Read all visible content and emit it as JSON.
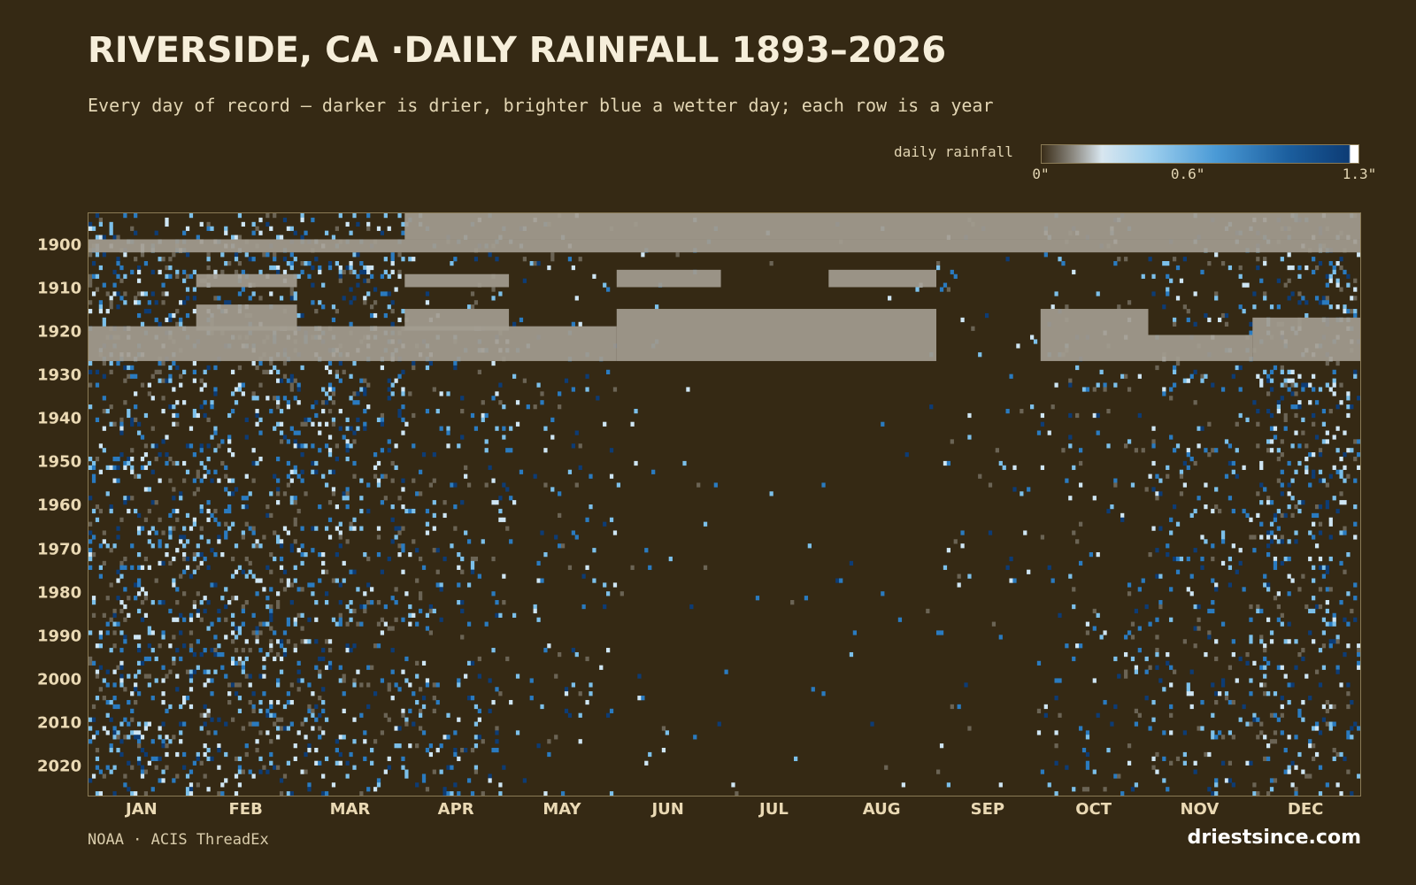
{
  "page": {
    "title": "RIVERSIDE, CA ·DAILY RAINFALL 1893–2026",
    "subtitle": "Every day of record — darker is drier, brighter blue a wetter day; each row is a year",
    "source": "NOAA · ACIS ThreadEx",
    "brand": "driestsince.com"
  },
  "colors": {
    "background": "#352914",
    "missing": "#a39c90",
    "light_rain": "#cfe6f4",
    "moderate_rain": "#7cc0ea",
    "heavy_rain": "#2a7bc0",
    "extreme_rain": "#0d3c75"
  },
  "legend": {
    "label": "daily rainfall",
    "ticks": [
      {
        "value": 0,
        "label": "0\""
      },
      {
        "value": 0.6,
        "label": "0.6\""
      },
      {
        "value": 1.3,
        "label": "1.3\""
      }
    ],
    "min": 0,
    "max": 1.3
  },
  "chart_data": {
    "type": "heatmap",
    "title": "RIVERSIDE, CA ·DAILY RAINFALL 1893–2026",
    "x_axis": "day of year",
    "y_axis": "year",
    "year_range": [
      1893,
      2026
    ],
    "year_ticks": [
      1900,
      1910,
      1920,
      1930,
      1940,
      1950,
      1960,
      1970,
      1980,
      1990,
      2000,
      2010,
      2020
    ],
    "months": [
      "JAN",
      "FEB",
      "MAR",
      "APR",
      "MAY",
      "JUN",
      "JUL",
      "AUG",
      "SEP",
      "OCT",
      "NOV",
      "DEC"
    ],
    "value_unit": "inches",
    "value_range": [
      0,
      1.3
    ],
    "missing_data_blocks": [
      {
        "years": [
          1899,
          1901
        ],
        "months": [
          "JAN",
          "DEC"
        ]
      },
      {
        "years": [
          1893,
          1898
        ],
        "months": [
          "APR",
          "DEC"
        ]
      },
      {
        "years": [
          1907,
          1909
        ],
        "months": [
          "FEB",
          "FEB"
        ]
      },
      {
        "years": [
          1907,
          1909
        ],
        "months": [
          "APR",
          "APR"
        ]
      },
      {
        "years": [
          1906,
          1909
        ],
        "months": [
          "JUN",
          "JUN"
        ]
      },
      {
        "years": [
          1906,
          1909
        ],
        "months": [
          "AUG",
          "AUG"
        ]
      },
      {
        "years": [
          1914,
          1919
        ],
        "months": [
          "FEB",
          "FEB"
        ]
      },
      {
        "years": [
          1915,
          1919
        ],
        "months": [
          "APR",
          "APR"
        ]
      },
      {
        "years": [
          1915,
          1926
        ],
        "months": [
          "JUN",
          "AUG"
        ]
      },
      {
        "years": [
          1915,
          1926
        ],
        "months": [
          "OCT",
          "OCT"
        ]
      },
      {
        "years": [
          1917,
          1926
        ],
        "months": [
          "DEC",
          "DEC"
        ]
      },
      {
        "years": [
          1919,
          1926
        ],
        "months": [
          "JAN",
          "MAY"
        ]
      },
      {
        "years": [
          1921,
          1926
        ],
        "months": [
          "NOV",
          "NOV"
        ]
      }
    ],
    "seasonality": {
      "wettest_months": [
        "JAN",
        "FEB",
        "MAR",
        "DEC"
      ],
      "driest_months": [
        "JUN",
        "JUL",
        "AUG"
      ]
    }
  }
}
